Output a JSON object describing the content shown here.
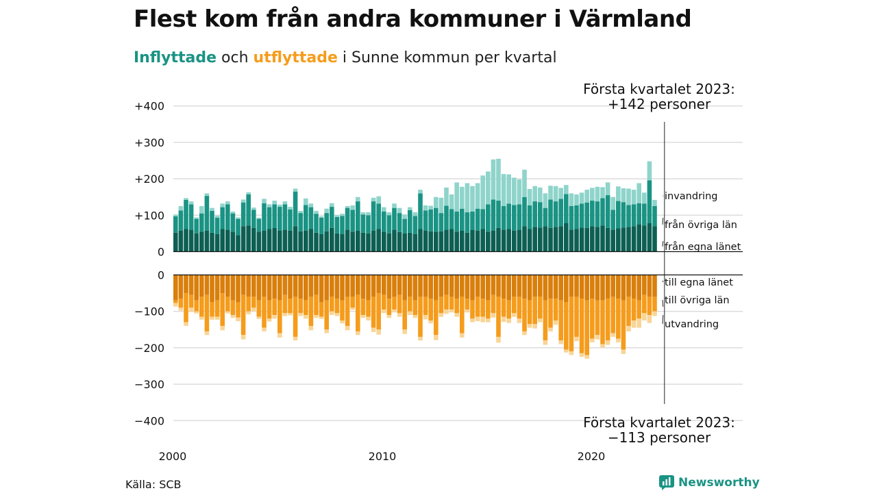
{
  "header": {
    "title": "Flest kom från andra kommuner i Värmland",
    "subtitle_in": "Inflyttade",
    "subtitle_and": "och",
    "subtitle_out": "utflyttade",
    "subtitle_rest": "i Sunne kommun per kvartal"
  },
  "footer": {
    "source": "Källa: SCB",
    "brand": "Newsworthy"
  },
  "colors": {
    "in_egna": "#0d5f53",
    "in_ovriga": "#1a9384",
    "in_invandring": "#8fd4cb",
    "out_egna": "#d97f0c",
    "out_ovriga": "#f59c1c",
    "out_utvandring": "#f8d598",
    "brand": "#1a9384"
  },
  "chart_data": {
    "type": "bar",
    "stacked": true,
    "title": "Flest kom från andra kommuner i Värmland",
    "x_start": "2000 Q1",
    "x_end": "2023 Q1",
    "x_ticks": [
      "2000",
      "2010",
      "2020"
    ],
    "panels": [
      {
        "name": "inflyttade",
        "y_ticks": [
          "+400",
          "+300",
          "+200",
          "+100",
          "0"
        ],
        "ylim": [
          0,
          400
        ],
        "series": [
          {
            "name": "från egna länet",
            "values": [
              52,
              58,
              62,
              60,
              50,
              55,
              58,
              52,
              48,
              62,
              60,
              55,
              45,
              70,
              72,
              65,
              55,
              58,
              62,
              65,
              58,
              60,
              58,
              70,
              56,
              58,
              62,
              52,
              48,
              56,
              65,
              50,
              48,
              60,
              55,
              58,
              52,
              50,
              58,
              62,
              55,
              50,
              60,
              54,
              50,
              52,
              48,
              62,
              58,
              56,
              55,
              56,
              60,
              62,
              55,
              58,
              52,
              60,
              58,
              62,
              55,
              58,
              65,
              60,
              62,
              58,
              60,
              70,
              62,
              68,
              66,
              70,
              65,
              68,
              70,
              78,
              60,
              62,
              66,
              65,
              70,
              68,
              72,
              65,
              60,
              64,
              66,
              68,
              70,
              75,
              72,
              78,
              70
            ]
          },
          {
            "name": "från övriga län",
            "values": [
              45,
              55,
              80,
              70,
              40,
              50,
              95,
              60,
              45,
              60,
              70,
              50,
              45,
              65,
              85,
              50,
              35,
              75,
              60,
              65,
              65,
              70,
              58,
              95,
              50,
              70,
              60,
              52,
              45,
              50,
              58,
              45,
              50,
              60,
              60,
              80,
              50,
              50,
              80,
              70,
              55,
              50,
              60,
              52,
              40,
              62,
              50,
              98,
              55,
              60,
              65,
              50,
              66,
              55,
              55,
              60,
              56,
              50,
              60,
              55,
              75,
              85,
              75,
              65,
              70,
              70,
              70,
              80,
              65,
              70,
              70,
              50,
              78,
              70,
              75,
              80,
              65,
              65,
              66,
              70,
              70,
              70,
              75,
              90,
              55,
              75,
              70,
              60,
              60,
              58,
              60,
              118,
              55
            ]
          },
          {
            "name": "invandring",
            "values": [
              5,
              12,
              5,
              8,
              4,
              20,
              7,
              8,
              6,
              10,
              8,
              5,
              4,
              8,
              6,
              6,
              3,
              12,
              8,
              10,
              6,
              8,
              7,
              8,
              6,
              18,
              10,
              8,
              4,
              12,
              10,
              5,
              6,
              5,
              12,
              12,
              6,
              8,
              10,
              20,
              12,
              8,
              12,
              14,
              12,
              8,
              10,
              10,
              14,
              10,
              30,
              42,
              50,
              40,
              80,
              60,
              80,
              70,
              70,
              92,
              90,
              110,
              115,
              88,
              80,
              75,
              68,
              75,
              45,
              42,
              40,
              40,
              38,
              42,
              30,
              25,
              35,
              30,
              30,
              35,
              35,
              40,
              30,
              35,
              35,
              40,
              38,
              45,
              40,
              55,
              30,
              52,
              17
            ]
          }
        ]
      },
      {
        "name": "utflyttade",
        "y_ticks": [
          "0",
          "−100",
          "−200",
          "−300",
          "−400"
        ],
        "ylim": [
          -400,
          0
        ],
        "series": [
          {
            "name": "till egna länet",
            "values": [
              -70,
              -65,
              -50,
              -55,
              -70,
              -60,
              -55,
              -75,
              -70,
              -50,
              -60,
              -70,
              -75,
              -55,
              -60,
              -60,
              -70,
              -60,
              -70,
              -65,
              -70,
              -55,
              -65,
              -60,
              -65,
              -70,
              -60,
              -55,
              -75,
              -70,
              -60,
              -65,
              -70,
              -60,
              -60,
              -55,
              -65,
              -70,
              -60,
              -50,
              -55,
              -65,
              -60,
              -55,
              -70,
              -60,
              -70,
              -60,
              -60,
              -65,
              -70,
              -60,
              -55,
              -60,
              -65,
              -60,
              -65,
              -70,
              -60,
              -65,
              -70,
              -55,
              -60,
              -65,
              -70,
              -60,
              -60,
              -65,
              -70,
              -60,
              -60,
              -70,
              -65,
              -65,
              -70,
              -75,
              -60,
              -60,
              -65,
              -70,
              -65,
              -70,
              -70,
              -65,
              -60,
              -65,
              -70,
              -60,
              -65,
              -70,
              -55,
              -60,
              -60
            ]
          },
          {
            "name": "till övriga län",
            "values": [
              -7,
              -25,
              -80,
              -35,
              -30,
              -55,
              -100,
              -40,
              -45,
              -90,
              -40,
              -40,
              -42,
              -110,
              -40,
              -30,
              -45,
              -85,
              -50,
              -45,
              -90,
              -50,
              -40,
              -110,
              -40,
              -40,
              -80,
              -55,
              -40,
              -80,
              -40,
              -40,
              -55,
              -80,
              -30,
              -100,
              -45,
              -45,
              -85,
              -100,
              -40,
              -45,
              -35,
              -50,
              -80,
              -40,
              -40,
              -110,
              -50,
              -60,
              -95,
              -45,
              -40,
              -35,
              -40,
              -100,
              -30,
              -50,
              -55,
              -50,
              -50,
              -50,
              -110,
              -50,
              -50,
              -45,
              -60,
              -90,
              -65,
              -75,
              -60,
              -110,
              -80,
              -60,
              -110,
              -130,
              -150,
              -110,
              -150,
              -150,
              -110,
              -95,
              -120,
              -115,
              -100,
              -110,
              -135,
              -80,
              -60,
              -50,
              -50,
              -50,
              -40
            ]
          },
          {
            "name": "utvandring",
            "values": [
              -10,
              -8,
              -10,
              -12,
              -6,
              -8,
              -10,
              -8,
              -8,
              -12,
              -6,
              -8,
              -10,
              -12,
              -8,
              -10,
              -6,
              -10,
              -8,
              -10,
              -12,
              -8,
              -6,
              -10,
              -8,
              -10,
              -12,
              -8,
              -6,
              -10,
              -10,
              -8,
              -8,
              -12,
              -6,
              -10,
              -8,
              -10,
              -12,
              -14,
              -10,
              -8,
              -8,
              -10,
              -12,
              -10,
              -8,
              -10,
              -12,
              -8,
              -14,
              -10,
              -12,
              -8,
              -10,
              -12,
              -8,
              -10,
              -12,
              -15,
              -10,
              -12,
              -16,
              -14,
              -12,
              -10,
              -12,
              -10,
              -10,
              -12,
              -10,
              -12,
              -10,
              -12,
              -10,
              -8,
              -10,
              -12,
              -10,
              -10,
              -10,
              -12,
              -10,
              -12,
              -10,
              -10,
              -12,
              -15,
              -20,
              -25,
              -20,
              -22,
              -13
            ]
          }
        ]
      }
    ],
    "annotations": {
      "top_label": "Första kvartalet 2023:",
      "top_value": "+142 personer",
      "bottom_label": "Första kvartalet 2023:",
      "bottom_value": "−113 personer"
    },
    "series_labels": {
      "invandring": "invandring",
      "fran_ovriga": "från övriga län",
      "fran_egna": "från egna länet",
      "till_egna": "till egna länet",
      "till_ovriga": "till övriga län",
      "utvandring": "utvandring"
    },
    "grid": true
  }
}
